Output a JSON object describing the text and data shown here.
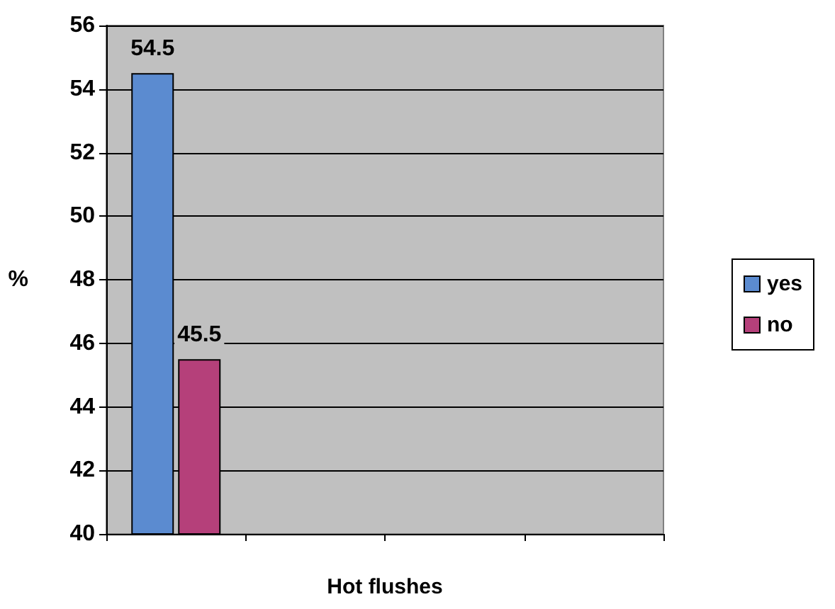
{
  "chart_data": {
    "type": "bar",
    "xlabel": "Hot flushes",
    "ylabel": "%",
    "categories": [
      null,
      null,
      null,
      null
    ],
    "series": [
      {
        "name": "yes",
        "color": "#5b8bd0",
        "values": [
          54.5,
          null,
          null,
          null
        ]
      },
      {
        "name": "no",
        "color": "#b5407a",
        "values": [
          45.5,
          null,
          null,
          null
        ]
      }
    ],
    "ylim": [
      40,
      56
    ],
    "yticks": [
      40,
      42,
      44,
      46,
      48,
      50,
      52,
      54,
      56
    ],
    "grid": "y",
    "legend": "right",
    "data_labels": true
  }
}
